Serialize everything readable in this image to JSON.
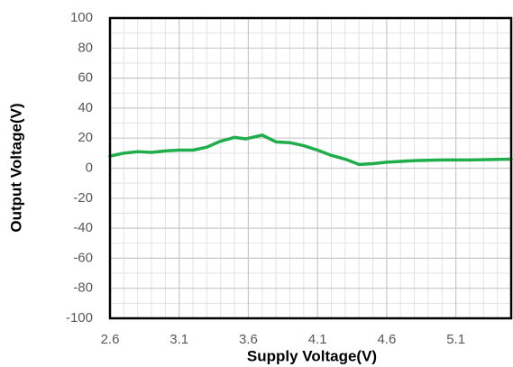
{
  "chart_data": {
    "type": "line",
    "x_label": "Supply Voltage(V)",
    "y_label": "Output Voltage(V)",
    "x": [
      2.6,
      2.7,
      2.8,
      2.9,
      3.0,
      3.1,
      3.2,
      3.3,
      3.4,
      3.5,
      3.58,
      3.7,
      3.8,
      3.9,
      4.0,
      4.1,
      4.2,
      4.3,
      4.4,
      4.5,
      4.6,
      4.8,
      5.0,
      5.2,
      5.5
    ],
    "series": [
      {
        "name": "Output Voltage",
        "color": "#1fae4b",
        "values": [
          8,
          10,
          11,
          10.5,
          11.5,
          12,
          12,
          14,
          18,
          20.5,
          19.5,
          22,
          17.5,
          17,
          15,
          12,
          8.5,
          6,
          2.5,
          3,
          4,
          5,
          5.5,
          5.5,
          6
        ]
      }
    ],
    "xlim": [
      2.6,
      5.5
    ],
    "ylim": [
      -100,
      100
    ],
    "xticks": [
      2.6,
      3.1,
      3.6,
      4.1,
      4.6,
      5.1
    ],
    "yticks": [
      -100,
      -80,
      -60,
      -40,
      -20,
      0,
      20,
      40,
      60,
      80,
      100
    ],
    "x_minor_grid": [
      2.7,
      2.8,
      2.9,
      3.0,
      3.2,
      3.3,
      3.4,
      3.5,
      3.7,
      3.8,
      3.9,
      4.0,
      4.2,
      4.3,
      4.4,
      4.5,
      4.7,
      4.8,
      4.9,
      5.0,
      5.2,
      5.3,
      5.4
    ],
    "y_minor_grid": [
      -90,
      -70,
      -50,
      -30,
      -10,
      10,
      30,
      50,
      70,
      90
    ],
    "grid": true
  }
}
